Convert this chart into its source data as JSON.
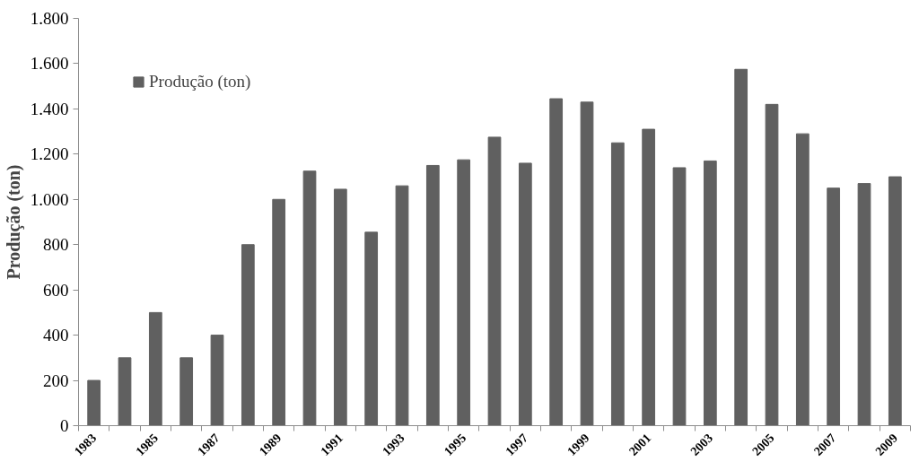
{
  "chart_data": {
    "type": "bar",
    "ylabel": "Produção (ton)",
    "categories": [
      "1983",
      null,
      "1985",
      null,
      "1987",
      null,
      "1989",
      null,
      "1991",
      null,
      "1993",
      null,
      "1995",
      null,
      "1997",
      null,
      "1999",
      null,
      "2001",
      null,
      "2003",
      null,
      "2005",
      null,
      "2007",
      null,
      "2009"
    ],
    "series": [
      {
        "name": "Produção (ton)",
        "color": "#606060",
        "values": [
          200,
          300,
          500,
          300,
          400,
          800,
          1000,
          1125,
          1045,
          855,
          1060,
          1150,
          1175,
          1275,
          1160,
          1445,
          1430,
          1250,
          1310,
          1140,
          1170,
          1575,
          1420,
          1290,
          1050,
          1070,
          1100
        ]
      }
    ],
    "ylim": [
      0,
      1800
    ],
    "yticks": [
      0,
      200,
      400,
      600,
      800,
      {
        "value": 1000,
        "label": "1.000"
      },
      {
        "value": 1200,
        "label": "1.200"
      },
      {
        "value": 1400,
        "label": "1.400"
      },
      {
        "value": 1600,
        "label": "1.600"
      },
      {
        "value": 1800,
        "label": "1.800"
      }
    ],
    "grid": false,
    "legend": "top left"
  }
}
